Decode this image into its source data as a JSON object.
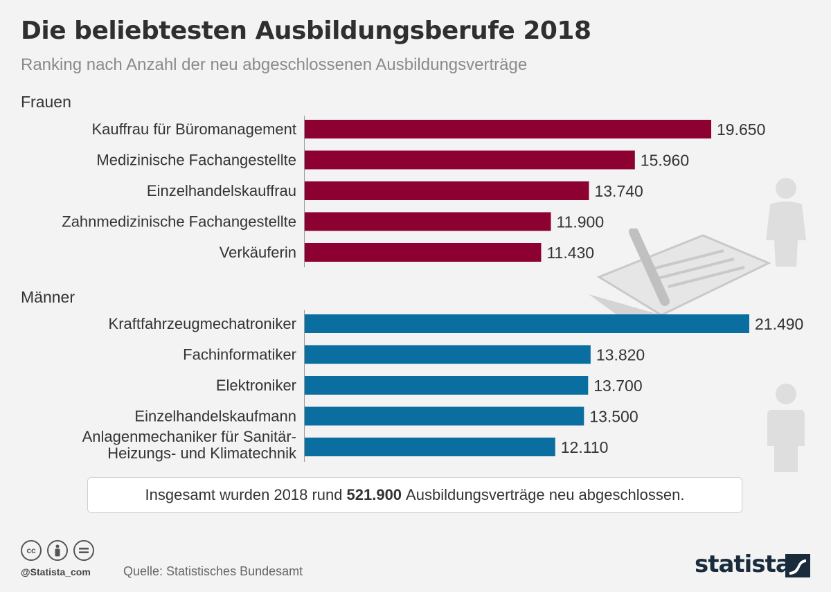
{
  "title": "Die beliebtesten Ausbildungsberufe 2018",
  "subtitle": "Ranking nach Anzahl der neu abgeschlossenen Ausbildungsverträge",
  "colors": {
    "women": "#8c0032",
    "men": "#0a6ea1"
  },
  "chart_data": [
    {
      "type": "bar",
      "orientation": "horizontal",
      "title": "Frauen",
      "categories": [
        "Kauffrau für Büromanagement",
        "Medizinische Fachangestellte",
        "Einzelhandelskauffrau",
        "Zahnmedizinische Fachangestellte",
        "Verkäuferin"
      ],
      "values": [
        19650,
        15960,
        13740,
        11900,
        11430
      ],
      "value_labels": [
        "19.650",
        "15.960",
        "13.740",
        "11.900",
        "11.430"
      ],
      "xlim": [
        0,
        21490
      ],
      "grid": false,
      "color": "#8c0032"
    },
    {
      "type": "bar",
      "orientation": "horizontal",
      "title": "Männer",
      "categories": [
        "Kraftfahrzeugmechatroniker",
        "Fachinformatiker",
        "Elektroniker",
        "Einzelhandelskaufmann",
        "Anlagenmechaniker für Sanitär-\nHeizungs- und Klimatechnik"
      ],
      "values": [
        21490,
        13820,
        13700,
        13500,
        12110
      ],
      "value_labels": [
        "21.490",
        "13.820",
        "13.700",
        "13.500",
        "12.110"
      ],
      "xlim": [
        0,
        21490
      ],
      "grid": false,
      "color": "#0a6ea1"
    }
  ],
  "note": {
    "prefix": "Insgesamt wurden 2018 rund",
    "highlight": "521.900",
    "suffix": "Ausbildungsverträge neu abgeschlossen."
  },
  "footer": {
    "handle": "@Statista_com",
    "source": "Quelle: Statistisches Bundesamt",
    "brand": "statista"
  },
  "icons": [
    "cc-icon",
    "attribution-icon",
    "no-derivatives-icon",
    "woman-icon",
    "man-icon",
    "contract-icon",
    "statista-logo-icon"
  ]
}
